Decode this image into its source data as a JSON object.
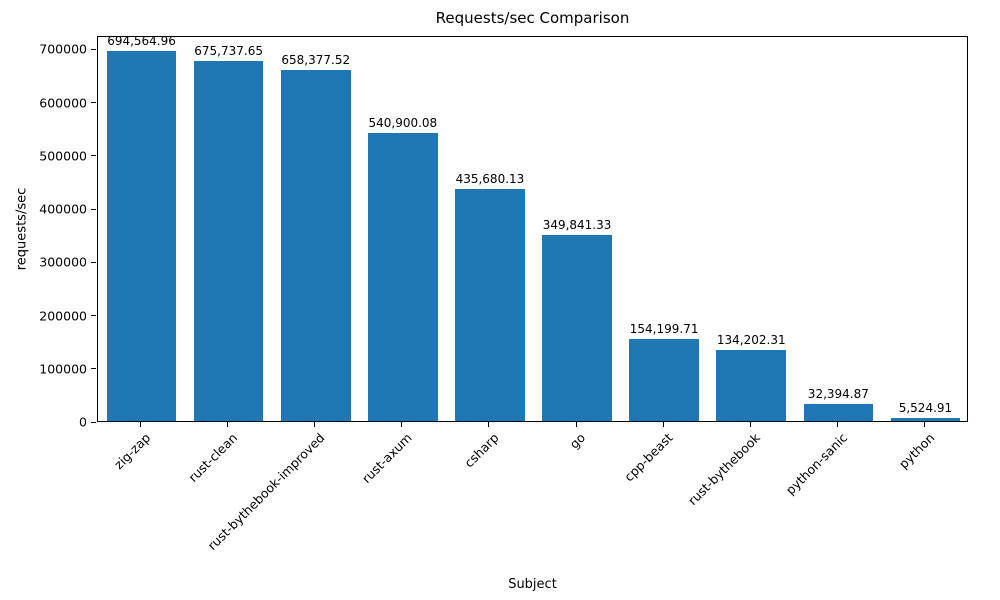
{
  "chart_data": {
    "type": "bar",
    "title": "Requests/sec Comparison",
    "xlabel": "Subject",
    "ylabel": "requests/sec",
    "categories": [
      "zig-zap",
      "rust-clean",
      "rust-bythebook-improved",
      "rust-axum",
      "csharp",
      "go",
      "cpp-beast",
      "rust-bythebook",
      "python-sanic",
      "python"
    ],
    "values": [
      694564.96,
      675737.65,
      658377.52,
      540900.08,
      435680.13,
      349841.33,
      154199.71,
      134202.31,
      32394.87,
      5524.91
    ],
    "value_labels": [
      "694,564.96",
      "675,737.65",
      "658,377.52",
      "540,900.08",
      "435,680.13",
      "349,841.33",
      "154,199.71",
      "134,202.31",
      "32,394.87",
      "5,524.91"
    ],
    "yticks": [
      0,
      100000,
      200000,
      300000,
      400000,
      500000,
      600000,
      700000
    ],
    "ytick_labels": [
      "0",
      "100000",
      "200000",
      "300000",
      "400000",
      "500000",
      "600000",
      "700000"
    ],
    "ylim": [
      0,
      725000
    ],
    "bar_color": "#1f77b4",
    "background_color": "#ffffff",
    "grid": false,
    "legend": false
  }
}
